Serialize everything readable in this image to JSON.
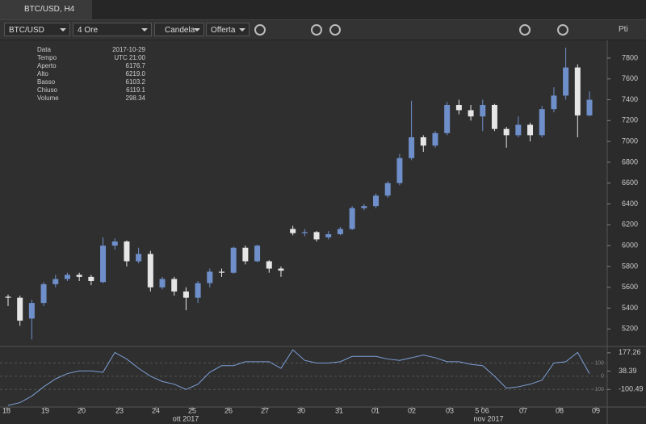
{
  "tab": {
    "title": "BTC/USD, H4"
  },
  "toolbar": {
    "symbol": "BTC/USD",
    "timeframe": "4 Ore",
    "chart_type": "Candela",
    "price_type": "Offerta",
    "points": "Pti"
  },
  "info": {
    "labels": [
      "Data",
      "Tempo",
      "Aperto",
      "Alto",
      "Basso",
      "Chiuso",
      "Volume"
    ],
    "values": [
      "2017-10-29",
      "UTC 21:00",
      "6176.7",
      "6219.0",
      "6103.2",
      "6119.1",
      "298.34"
    ]
  },
  "chart_data": {
    "type": "candlestick",
    "open": [
      5510,
      5500,
      5300,
      5450,
      5630,
      5680,
      5720,
      5700,
      5650,
      6000,
      6040,
      5850,
      5920,
      5600,
      5680,
      5560,
      5500,
      5640,
      5750,
      5740,
      5980,
      5850,
      5850,
      5780,
      6160,
      6120,
      6130,
      6080,
      6110,
      6160,
      6360,
      6380,
      6480,
      6600,
      6840,
      7040,
      6960,
      7080,
      7350,
      7300,
      7240,
      7350,
      7120,
      7060,
      7160,
      7060,
      7310,
      7440,
      7710,
      7250
    ],
    "high": [
      5530,
      5520,
      5480,
      5650,
      5720,
      5740,
      5740,
      5720,
      6080,
      6070,
      6050,
      5980,
      5950,
      5700,
      5700,
      5600,
      5660,
      5780,
      5780,
      5990,
      6000,
      6010,
      5860,
      5800,
      6190,
      6160,
      6140,
      6140,
      6180,
      6380,
      6400,
      6500,
      6620,
      6880,
      7390,
      7060,
      7100,
      7380,
      7400,
      7350,
      7400,
      7360,
      7140,
      7240,
      7180,
      7340,
      7520,
      7900,
      7740,
      7480
    ],
    "low": [
      5420,
      5230,
      5100,
      5420,
      5600,
      5660,
      5660,
      5620,
      5640,
      5960,
      5800,
      5830,
      5560,
      5580,
      5520,
      5380,
      5450,
      5600,
      5700,
      5730,
      5820,
      5840,
      5740,
      5700,
      6100,
      6090,
      6040,
      6060,
      6100,
      6150,
      6340,
      6360,
      6460,
      6580,
      6820,
      6900,
      6940,
      7060,
      7260,
      7200,
      7100,
      7100,
      6940,
      7040,
      7000,
      7040,
      7280,
      7400,
      7040,
      7240
    ],
    "close": [
      5500,
      5280,
      5450,
      5630,
      5680,
      5720,
      5700,
      5660,
      6000,
      6040,
      5850,
      5920,
      5600,
      5680,
      5560,
      5500,
      5640,
      5750,
      5740,
      5980,
      5850,
      6000,
      5780,
      5760,
      6120,
      6130,
      6060,
      6110,
      6160,
      6360,
      6380,
      6480,
      6600,
      6840,
      7040,
      6960,
      7080,
      7350,
      7300,
      7240,
      7350,
      7120,
      7060,
      7160,
      7060,
      7310,
      7440,
      7710,
      7250,
      7400
    ],
    "ylim": [
      5040,
      7970
    ],
    "yticks": [
      5200,
      5400,
      5600,
      5800,
      6000,
      6200,
      6400,
      6600,
      6800,
      7000,
      7200,
      7400,
      7600,
      7800
    ],
    "up_color": "#6f8fca",
    "down_color": "#e6e6e6",
    "xticks": [
      "18",
      "19",
      "20",
      "23",
      "24",
      "25",
      "26",
      "27",
      "30",
      "31",
      "01",
      "02",
      "03",
      "5 06",
      "07",
      "08",
      "09"
    ],
    "month_labels": [
      "ott 2017",
      "nov 2017"
    ],
    "indicator": {
      "type": "line",
      "color": "#7d9fd6",
      "values": [
        -220,
        -200,
        -150,
        -80,
        -20,
        20,
        40,
        40,
        30,
        180,
        130,
        60,
        0,
        -40,
        -60,
        -100,
        -60,
        30,
        80,
        80,
        110,
        110,
        110,
        60,
        200,
        120,
        100,
        100,
        110,
        150,
        150,
        150,
        130,
        120,
        140,
        160,
        140,
        110,
        110,
        90,
        80,
        0,
        -90,
        -80,
        -60,
        -30,
        100,
        110,
        180,
        20
      ],
      "ylim": [
        -227,
        219
      ],
      "yticks": [
        177.26,
        38.39,
        -100.49
      ],
      "levels": [
        100,
        0,
        -100
      ]
    }
  }
}
